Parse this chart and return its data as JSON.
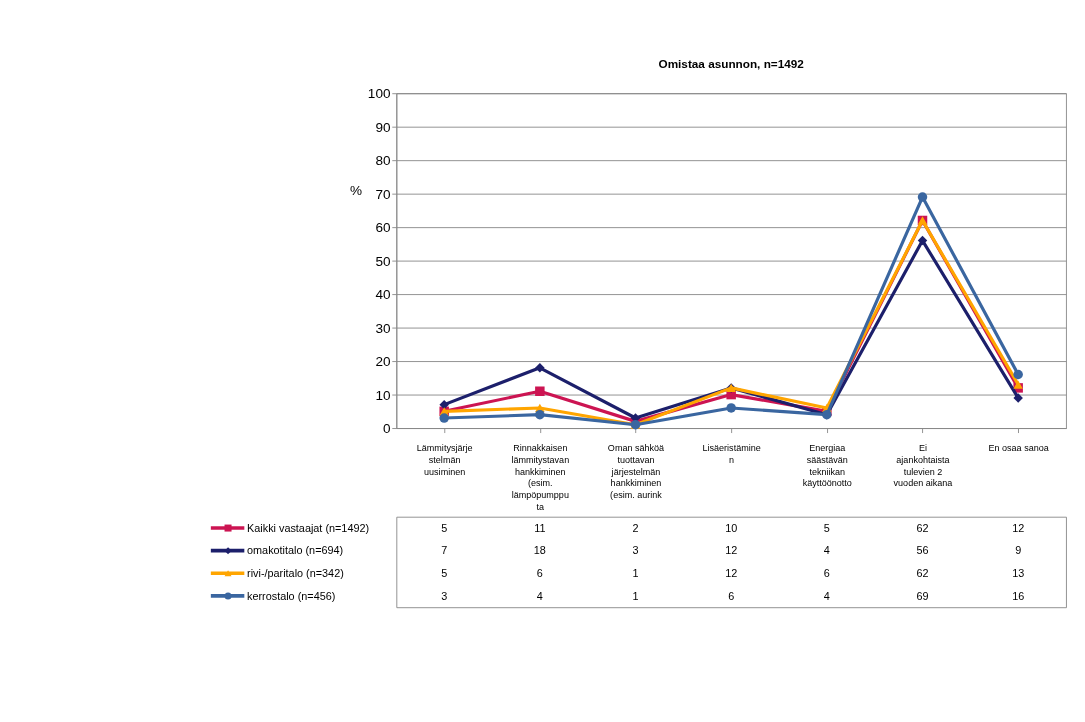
{
  "chart_data": {
    "type": "line",
    "title": "Omistaa asunnon, n=1492",
    "ylabel": "%",
    "categories": [
      "Lämmitysjärje\nstelmän\nuusiminen",
      "Rinnakkaisen\nlämmitystavan\nhankkiminen\n(esim.\nlämpöpumppu\nta",
      "Oman sähköä\ntuottavan\njärjestelmän\nhankkiminen\n(esim. aurink",
      "Lisäeristämine\nn",
      "Energiaa\nsäästävän\ntekniikan\nkäyttöönotto",
      "Ei\najankohtaista\ntulevien 2\nvuoden aikana",
      "En osaa sanoa"
    ],
    "series": [
      {
        "name": "Kaikki vastaajat (n=1492)",
        "color": "#cc1452",
        "marker": "square",
        "values": [
          5,
          11,
          2,
          10,
          5,
          62,
          12
        ]
      },
      {
        "name": "omakotitalo (n=694)",
        "color": "#1c1f6b",
        "marker": "diamond",
        "values": [
          7,
          18,
          3,
          12,
          4,
          56,
          9
        ]
      },
      {
        "name": "rivi-/paritalo (n=342)",
        "color": "#ffa500",
        "marker": "triangle",
        "values": [
          5,
          6,
          1,
          12,
          6,
          62,
          13
        ]
      },
      {
        "name": "kerrostalo (n=456)",
        "color": "#3a66a0",
        "marker": "circle",
        "values": [
          3,
          4,
          1,
          6,
          4,
          69,
          16
        ]
      }
    ],
    "ylim": [
      0,
      100
    ],
    "yticks": [
      0,
      10,
      20,
      30,
      40,
      50,
      60,
      70,
      80,
      90,
      100
    ],
    "grid": "y",
    "data_labels": true,
    "legend": "bottom left"
  }
}
